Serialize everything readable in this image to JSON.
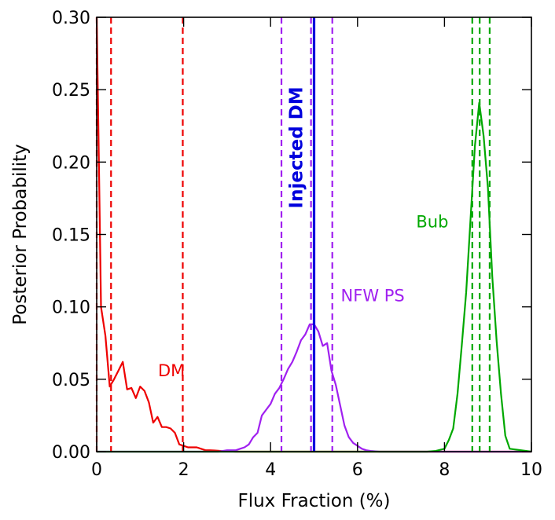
{
  "chart_data": {
    "type": "line",
    "title": "",
    "xlabel": "Flux Fraction (%)",
    "ylabel": "Posterior Probability",
    "xlim": [
      0,
      10
    ],
    "ylim": [
      0,
      0.3
    ],
    "x_ticks": [
      0,
      2,
      4,
      6,
      8,
      10
    ],
    "y_ticks": [
      0.0,
      0.05,
      0.1,
      0.15,
      0.2,
      0.25,
      0.3
    ],
    "x_tick_labels": [
      "0",
      "2",
      "4",
      "6",
      "8",
      "10"
    ],
    "y_tick_labels": [
      "0.00",
      "0.05",
      "0.10",
      "0.15",
      "0.20",
      "0.25",
      "0.30"
    ],
    "grid": false,
    "series": [
      {
        "name": "DM",
        "color": "#ee0000",
        "x": [
          0.0,
          0.05,
          0.1,
          0.2,
          0.3,
          0.4,
          0.5,
          0.6,
          0.7,
          0.8,
          0.9,
          1.0,
          1.1,
          1.2,
          1.3,
          1.4,
          1.5,
          1.6,
          1.7,
          1.8,
          1.9,
          2.0,
          2.1,
          2.2,
          2.3,
          2.4,
          2.5,
          2.6,
          2.7,
          2.8,
          2.9,
          3.0,
          3.2,
          3.5,
          4.0,
          10.0
        ],
        "values": [
          0.3,
          0.2,
          0.1,
          0.08,
          0.045,
          0.05,
          0.056,
          0.062,
          0.043,
          0.044,
          0.037,
          0.045,
          0.042,
          0.034,
          0.02,
          0.024,
          0.017,
          0.017,
          0.016,
          0.013,
          0.005,
          0.004,
          0.003,
          0.003,
          0.003,
          0.002,
          0.001,
          0.001,
          0.0008,
          0.0006,
          0.0004,
          0.0002,
          0.0,
          0.0,
          0.0,
          0.0
        ],
        "credible_lines": [
          0.0,
          0.33,
          1.98
        ]
      },
      {
        "name": "NFW PS",
        "color": "#a020f0",
        "x": [
          0.0,
          2.8,
          3.0,
          3.1,
          3.2,
          3.3,
          3.4,
          3.5,
          3.6,
          3.7,
          3.8,
          3.9,
          4.0,
          4.1,
          4.2,
          4.3,
          4.4,
          4.5,
          4.6,
          4.7,
          4.8,
          4.9,
          5.0,
          5.1,
          5.2,
          5.3,
          5.4,
          5.5,
          5.6,
          5.7,
          5.8,
          5.9,
          6.0,
          6.1,
          6.2,
          6.3,
          6.5,
          10.0
        ],
        "values": [
          0.0,
          0.0,
          0.001,
          0.001,
          0.001,
          0.002,
          0.003,
          0.005,
          0.01,
          0.013,
          0.025,
          0.029,
          0.033,
          0.04,
          0.044,
          0.05,
          0.057,
          0.062,
          0.069,
          0.077,
          0.081,
          0.088,
          0.088,
          0.083,
          0.073,
          0.075,
          0.056,
          0.046,
          0.032,
          0.018,
          0.01,
          0.006,
          0.004,
          0.002,
          0.001,
          0.0005,
          0.0,
          0.0
        ],
        "credible_lines": [
          4.25,
          4.93,
          5.42
        ]
      },
      {
        "name": "Bub",
        "color": "#00a800",
        "x": [
          0.0,
          7.6,
          7.8,
          8.0,
          8.1,
          8.2,
          8.3,
          8.4,
          8.5,
          8.6,
          8.7,
          8.8,
          8.9,
          9.0,
          9.1,
          9.2,
          9.3,
          9.4,
          9.5,
          10.0
        ],
        "values": [
          0.0,
          0.0,
          0.0005,
          0.002,
          0.008,
          0.016,
          0.04,
          0.074,
          0.11,
          0.161,
          0.211,
          0.241,
          0.218,
          0.182,
          0.121,
          0.076,
          0.04,
          0.011,
          0.002,
          0.0
        ],
        "credible_lines": [
          8.64,
          8.81,
          9.04
        ]
      }
    ],
    "injected_line": {
      "label": "Injected DM",
      "x": 5.0,
      "color": "#0000dd"
    },
    "annotations": [
      {
        "text": "DM",
        "x": 1.72,
        "y": 0.052,
        "color": "#ee0000"
      },
      {
        "text": "NFW PS",
        "x": 6.35,
        "y": 0.104,
        "color": "#a020f0"
      },
      {
        "text": "Bub",
        "x": 7.72,
        "y": 0.155,
        "color": "#00a800"
      }
    ]
  }
}
